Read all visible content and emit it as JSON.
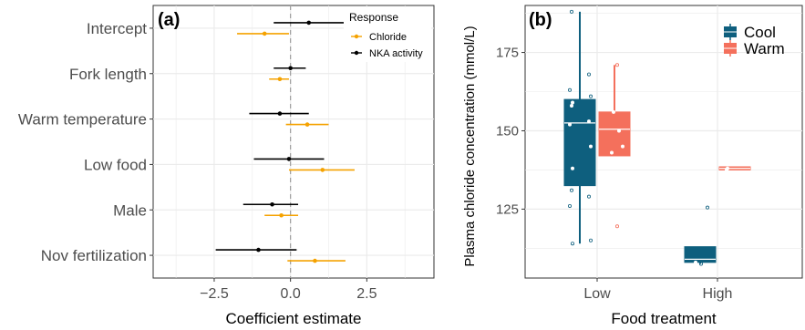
{
  "colors": {
    "chloride": "#f5a200",
    "nka": "#000000",
    "cool": "#0e5f7e",
    "warm": "#f4705c",
    "grid": "#ebebeb",
    "zero_line": "#9e9e9e"
  },
  "chart_data": [
    {
      "type": "scatter",
      "panel_label": "(a)",
      "xlabel": "Coefficient estimate",
      "ylabel": "",
      "xlim": [
        -4.5,
        4.7
      ],
      "xticks": [
        -2.5,
        0.0,
        2.5
      ],
      "xtick_labels": [
        "−2.5",
        "0.0",
        "2.5"
      ],
      "grid": true,
      "zero_line": "dashed",
      "categories": [
        "Intercept",
        "Fork length",
        "Warm temperature",
        "Low food",
        "Male",
        "Nov fertilization"
      ],
      "legend": {
        "title": "Response",
        "position": "top-right",
        "entries": [
          "Chloride",
          "NKA activity"
        ]
      },
      "series": [
        {
          "name": "Chloride",
          "estimate": [
            -0.85,
            -0.35,
            0.55,
            1.05,
            -0.3,
            0.8
          ],
          "lower": [
            -1.75,
            -0.7,
            -0.15,
            -0.05,
            -0.85,
            -0.1
          ],
          "upper": [
            -0.05,
            -0.05,
            1.25,
            2.1,
            0.25,
            1.8
          ]
        },
        {
          "name": "NKA activity",
          "estimate": [
            0.6,
            0.0,
            -0.35,
            -0.05,
            -0.6,
            -1.05
          ],
          "lower": [
            -0.55,
            -0.55,
            -1.35,
            -1.2,
            -1.55,
            -2.45
          ],
          "upper": [
            1.75,
            0.5,
            0.6,
            1.1,
            0.25,
            0.2
          ]
        }
      ]
    },
    {
      "type": "box",
      "panel_label": "(b)",
      "xlabel": "Food treatment",
      "ylabel": "Plasma chloride concentration (mmol/L)",
      "ylim": [
        103,
        190
      ],
      "yticks": [
        125,
        150,
        175
      ],
      "grid": true,
      "categories": [
        "Low",
        "High"
      ],
      "legend": {
        "position": "top-right",
        "entries": [
          "Cool",
          "Warm"
        ]
      },
      "series": [
        {
          "name": "Cool",
          "boxes": [
            {
              "min": 114,
              "q1": 132.5,
              "median": 152.5,
              "q3": 160,
              "max": 188
            },
            {
              "min": 107.5,
              "q1": 108,
              "median": 109,
              "q3": 113,
              "max": 113
            }
          ],
          "points": [
            [
              188,
              168,
              163,
              161,
              159,
              158,
              153,
              152,
              145,
              138,
              131,
              129,
              126,
              115,
              114
            ],
            [
              125.5,
              108,
              107.5
            ]
          ]
        },
        {
          "name": "Warm",
          "boxes": [
            {
              "min": 142,
              "q1": 142,
              "median": 150.5,
              "q3": 156,
              "max": 171
            },
            {
              "min": 137.5,
              "q1": 137.5,
              "median": 138,
              "q3": 138.5,
              "max": 138.5
            }
          ],
          "points": [
            [
              171,
              156,
              150,
              145,
              143,
              119.5
            ],
            [
              138,
              137.5
            ]
          ]
        }
      ]
    }
  ]
}
